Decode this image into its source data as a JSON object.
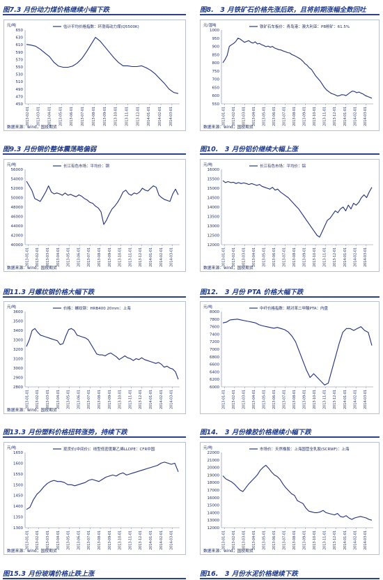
{
  "captions": [
    "图7.3 月份动力煤价格继续小幅下跌",
    "图8.　3 月铁矿石价格先涨后跌，且将前期涨幅全数回吐",
    "图9.3 月份铜价整体震荡略偏弱",
    "图10.　3 月份铝价继续大幅上涨",
    "图11.3 月螺纹钢价格大幅下跌",
    "图12.　3 月份 PTA 价格大幅下跌",
    "图13.3 月份塑料价格扭转涨势，持续下跌",
    "图14.　3 月份橡胶价格继续小幅下跌",
    "图15.3 月份玻璃价格止跌上涨",
    "图16.　3 月份水泥价格继续下跌"
  ],
  "chart_data": [
    {
      "type": "line",
      "unit": "元/吨",
      "legend": "估计平均价格指数：环渤海动力煤(Q5500K)",
      "source": "数据来源：wind，国投期货",
      "ylim": [
        450,
        650
      ],
      "yticks": [
        450,
        470,
        490,
        510,
        530,
        550,
        570,
        590,
        610,
        630,
        650
      ],
      "xticks": [
        "2013-02-01",
        "2013-03-01",
        "2013-04-01",
        "2013-05-01",
        "2013-06-01",
        "2013-07-01",
        "2013-08-01",
        "2013-09-01",
        "2013-10-01",
        "2013-11-01",
        "2013-12-01",
        "2014-01-01",
        "2014-02-01",
        "2014-03-01"
      ],
      "series": [
        {
          "values": [
            611,
            609,
            606,
            598,
            588,
            578,
            562,
            552,
            549,
            549,
            552,
            560,
            572,
            590,
            610,
            630,
            620,
            605,
            590,
            575,
            562,
            553,
            553,
            551,
            551,
            553,
            548,
            541,
            531,
            518,
            505,
            490,
            481,
            478
          ]
        }
      ]
    },
    {
      "type": "line",
      "unit": "元/湿吨",
      "legend": "铁矿石车板价：青岛港：澳大利亚：PB粉矿：61.5%",
      "source": "数据来源：wind，国投期货",
      "ylim": [
        550,
        1000
      ],
      "yticks": [
        550,
        600,
        650,
        700,
        750,
        800,
        850,
        900,
        950,
        1000
      ],
      "xticks": [
        "2013-01-01",
        "2013-02-01",
        "2013-03-01",
        "2013-04-01",
        "2013-05-01",
        "2013-06-01",
        "2013-07-01",
        "2013-08-01",
        "2013-09-01",
        "2013-10-01",
        "2013-11-01",
        "2013-12-01",
        "2014-01-01",
        "2014-02-01",
        "2014-03-01"
      ],
      "series": [
        {
          "values": [
            800,
            820,
            845,
            900,
            910,
            918,
            930,
            950,
            945,
            935,
            925,
            930,
            935,
            925,
            920,
            928,
            915,
            918,
            910,
            905,
            898,
            902,
            895,
            900,
            890,
            885,
            880,
            878,
            872,
            868,
            862,
            860,
            850,
            845,
            838,
            830,
            822,
            810,
            795,
            785,
            770,
            760,
            740,
            720,
            705,
            690,
            670,
            650,
            635,
            625,
            615,
            610,
            605,
            598,
            600,
            606,
            605,
            600,
            610,
            620,
            628,
            625,
            618,
            622,
            615,
            610,
            600,
            595,
            590,
            585
          ]
        }
      ]
    },
    {
      "type": "line",
      "unit": "元/吨",
      "legend": "长江有色市场：平均价：铜",
      "source": "数据来源：wind，国投期货",
      "ylim": [
        40000,
        56000
      ],
      "yticks": [
        40000,
        42000,
        44000,
        46000,
        48000,
        50000,
        52000,
        54000,
        56000
      ],
      "xticks": [
        "2013-01-01",
        "2013-02-01",
        "2013-03-01",
        "2013-04-01",
        "2013-05-01",
        "2013-06-01",
        "2013-07-01",
        "2013-08-01",
        "2013-09-01",
        "2013-10-01",
        "2013-11-01",
        "2013-12-01",
        "2014-01-01",
        "2014-02-01",
        "2014-03-01"
      ],
      "series": [
        {
          "values": [
            53500,
            52500,
            51500,
            49800,
            49500,
            49200,
            50200,
            51200,
            52500,
            51200,
            50800,
            51000,
            50800,
            50500,
            51000,
            50500,
            50700,
            50400,
            50200,
            50600,
            50300,
            49800,
            49500,
            49000,
            48800,
            48200,
            47800,
            47000,
            44300,
            45200,
            46500,
            47600,
            48200,
            49000,
            50000,
            51200,
            51600,
            50800,
            50500,
            51000,
            50800,
            51200,
            52000,
            51600,
            51400,
            52000,
            52500,
            52200,
            50500,
            50000,
            49600,
            49400,
            49200,
            50800,
            51800,
            50600
          ]
        }
      ]
    },
    {
      "type": "line",
      "unit": "元/吨",
      "legend": "长江有色市场：平均价：铝",
      "source": "数据来源：wind，国投期货",
      "ylim": [
        12000,
        16000
      ],
      "yticks": [
        12000,
        12500,
        13000,
        13500,
        14000,
        14500,
        15000,
        15500,
        16000
      ],
      "xticks": [
        "2013-01-01",
        "2013-02-01",
        "2013-03-01",
        "2013-04-01",
        "2013-05-01",
        "2013-06-01",
        "2013-07-01",
        "2013-08-01",
        "2013-09-01",
        "2013-10-01",
        "2013-11-01",
        "2013-12-01",
        "2014-01-01",
        "2014-02-01",
        "2014-03-01"
      ],
      "series": [
        {
          "values": [
            15400,
            15300,
            15350,
            15300,
            15320,
            15250,
            15300,
            15250,
            15280,
            15250,
            15200,
            15250,
            15200,
            15150,
            15200,
            15100,
            15050,
            15000,
            14950,
            15050,
            14900,
            14950,
            14800,
            14700,
            14600,
            14500,
            14350,
            14200,
            14050,
            13900,
            13700,
            13500,
            13300,
            13100,
            12900,
            12700,
            12500,
            12400,
            12700,
            13000,
            13300,
            13400,
            13600,
            13800,
            13700,
            13900,
            14000,
            13800,
            14100,
            13900,
            14200,
            14100,
            14250,
            14500,
            14650,
            14500,
            14800,
            15050
          ]
        }
      ]
    },
    {
      "type": "line",
      "unit": "元/吨",
      "legend": "价格：螺纹钢：HRB400 20mm：上海",
      "source": "数据来源：wind，国投期货",
      "ylim": [
        2800,
        3600
      ],
      "yticks": [
        2800,
        2900,
        3000,
        3100,
        3200,
        3300,
        3400,
        3500,
        3600
      ],
      "xticks": [
        "2013-01-01",
        "2013-02-01",
        "2013-03-01",
        "2013-04-01",
        "2013-05-01",
        "2013-06-01",
        "2013-07-01",
        "2013-08-01",
        "2013-09-01",
        "2013-10-01",
        "2013-11-01",
        "2013-12-01",
        "2014-01-01",
        "2014-02-01",
        "2014-03-01"
      ],
      "series": [
        {
          "values": [
            3230,
            3300,
            3400,
            3420,
            3380,
            3350,
            3340,
            3330,
            3320,
            3310,
            3300,
            3290,
            3250,
            3260,
            3340,
            3410,
            3420,
            3400,
            3350,
            3340,
            3330,
            3320,
            3300,
            3250,
            3200,
            3150,
            3140,
            3140,
            3130,
            3150,
            3160,
            3140,
            3120,
            3090,
            3110,
            3130,
            3110,
            3100,
            3080,
            3100,
            3090,
            3110,
            3090,
            3080,
            3070,
            3060,
            3050,
            3060,
            3040,
            3010,
            3020,
            3000,
            2990,
            2960,
            2880
          ]
        }
      ]
    },
    {
      "type": "line",
      "unit": "元/吨",
      "legend": "中纤价格指数：精对苯二甲酸PTA：内盘",
      "source": "",
      "ylim": [
        6000,
        8000
      ],
      "yticks": [
        6000,
        6200,
        6400,
        6600,
        6800,
        7000,
        7200,
        7400,
        7600,
        7800,
        8000
      ],
      "xticks": [
        "2013-01-01",
        "2013-02-01",
        "2013-03-01",
        "2013-04-01",
        "2013-05-01",
        "2013-06-01",
        "2013-07-01",
        "2013-08-01",
        "2013-09-01",
        "2013-10-01",
        "2013-11-01",
        "2013-12-01",
        "2014-01-01",
        "2014-02-01",
        "2014-03-01"
      ],
      "series": [
        {
          "values": [
            7700,
            7720,
            7780,
            7790,
            7800,
            7780,
            7760,
            7740,
            7720,
            7700,
            7650,
            7620,
            7600,
            7580,
            7560,
            7580,
            7550,
            7520,
            7460,
            7350,
            7200,
            6950,
            6700,
            6450,
            6250,
            6350,
            6250,
            6150,
            6050,
            6100,
            6450,
            6800,
            7150,
            7450,
            7550,
            7550,
            7500,
            7550,
            7600,
            7500,
            7450,
            7100
          ]
        }
      ]
    },
    {
      "type": "line",
      "unit": "元/吨",
      "legend": "现货价(中间价)：线型低密度聚乙烯LLDPE：CFR中国",
      "source": "数据来源：wind，国投期货",
      "ylim": [
        1300,
        1650
      ],
      "yticks": [
        1300,
        1350,
        1400,
        1450,
        1500,
        1550,
        1600,
        1650
      ],
      "xticks": [
        "2013-01-01",
        "2013-02-01",
        "2013-03-01",
        "2013-04-01",
        "2013-05-01",
        "2013-06-01",
        "2013-07-01",
        "2013-08-01",
        "2013-09-01",
        "2013-10-01",
        "2013-11-01",
        "2013-12-01",
        "2014-01-01",
        "2014-02-01",
        "2014-03-01"
      ],
      "series": [
        {
          "values": [
            1385,
            1395,
            1430,
            1455,
            1470,
            1490,
            1505,
            1515,
            1520,
            1515,
            1515,
            1510,
            1500,
            1500,
            1495,
            1500,
            1505,
            1510,
            1520,
            1525,
            1520,
            1515,
            1525,
            1535,
            1540,
            1545,
            1540,
            1550,
            1555,
            1545,
            1550,
            1555,
            1560,
            1565,
            1570,
            1575,
            1580,
            1585,
            1590,
            1600,
            1605,
            1600,
            1595,
            1600,
            1560
          ]
        }
      ]
    },
    {
      "type": "line",
      "unit": "元/吨",
      "legend": "市场价：天然橡胶：上海国营全乳胶(SCRWF)：上海",
      "source": "数据来源：wind，国投期货",
      "ylim": [
        12000,
        22000
      ],
      "yticks": [
        12000,
        13000,
        14000,
        15000,
        16000,
        17000,
        18000,
        19000,
        20000,
        21000,
        22000
      ],
      "xticks": [
        "2013-01-01",
        "2013-02-01",
        "2013-03-01",
        "2013-04-01",
        "2013-05-01",
        "2013-06-01",
        "2013-07-01",
        "2013-08-01",
        "2013-09-01",
        "2013-10-01",
        "2013-11-01",
        "2013-12-01",
        "2014-01-01",
        "2014-02-01",
        "2014-03-01"
      ],
      "series": [
        {
          "values": [
            18900,
            18500,
            18300,
            18100,
            17800,
            17400,
            17000,
            16800,
            17300,
            17800,
            18200,
            18600,
            19000,
            19600,
            20000,
            20300,
            19900,
            19400,
            19000,
            18800,
            18400,
            17800,
            17300,
            16900,
            16500,
            16300,
            15600,
            15400,
            15200,
            14600,
            14200,
            14100,
            14000,
            14000,
            14100,
            14300,
            14000,
            13900,
            13800,
            13700,
            13900,
            13500,
            13400,
            13600,
            13300,
            13100,
            13300,
            13400,
            13500,
            13400,
            13300,
            13100,
            13000
          ]
        }
      ]
    },
    {
      "type": "line",
      "unit": "",
      "legend": "",
      "source": "",
      "series": []
    },
    {
      "type": "line",
      "unit": "",
      "legend": "",
      "source": "",
      "series": []
    }
  ]
}
